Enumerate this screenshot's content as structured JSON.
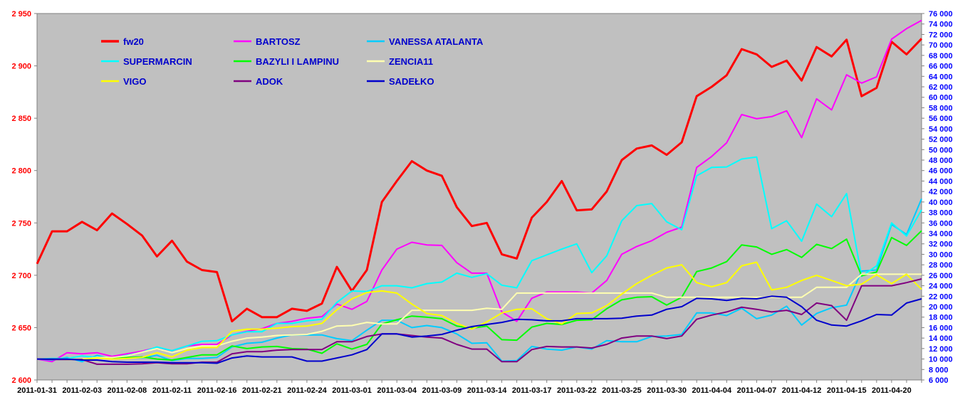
{
  "chart_data": {
    "type": "line",
    "title": "",
    "xlabel": "",
    "ylabel": "",
    "plot_background": "#c0c0c0",
    "grid": false,
    "legend_position": "top-left inside plot",
    "left_axis": {
      "ylim": [
        2600,
        2950
      ],
      "ticks": [
        2600,
        2650,
        2700,
        2750,
        2800,
        2850,
        2900,
        2950
      ],
      "tick_labels": [
        "2 600",
        "2 650",
        "2 700",
        "2 750",
        "2 800",
        "2 850",
        "2 900",
        "2 950"
      ],
      "color": "#ff0000"
    },
    "right_axis": {
      "ylim": [
        6000,
        76000
      ],
      "ticks": [
        6000,
        8000,
        10000,
        12000,
        14000,
        16000,
        18000,
        20000,
        22000,
        24000,
        26000,
        28000,
        30000,
        32000,
        34000,
        36000,
        38000,
        40000,
        42000,
        44000,
        46000,
        48000,
        50000,
        52000,
        54000,
        56000,
        58000,
        60000,
        62000,
        64000,
        66000,
        68000,
        70000,
        72000,
        74000,
        76000
      ],
      "tick_labels": [
        "6 000",
        "8 000",
        "10 000",
        "12 000",
        "14 000",
        "16 000",
        "18 000",
        "20 000",
        "22 000",
        "24 000",
        "26 000",
        "28 000",
        "30 000",
        "32 000",
        "34 000",
        "36 000",
        "38 000",
        "40 000",
        "42 000",
        "44 000",
        "46 000",
        "48 000",
        "50 000",
        "52 000",
        "54 000",
        "56 000",
        "58 000",
        "60 000",
        "62 000",
        "64 000",
        "66 000",
        "68 000",
        "70 000",
        "72 000",
        "74 000",
        "76 000"
      ],
      "color": "#0000ff"
    },
    "x_count": 60,
    "x_tick_labels": [
      {
        "index": 0,
        "label": "2011-01-31"
      },
      {
        "index": 3,
        "label": "2011-02-03"
      },
      {
        "index": 6,
        "label": "2011-02-08"
      },
      {
        "index": 9,
        "label": "2011-02-11"
      },
      {
        "index": 12,
        "label": "2011-02-16"
      },
      {
        "index": 15,
        "label": "2011-02-21"
      },
      {
        "index": 18,
        "label": "2011-02-24"
      },
      {
        "index": 21,
        "label": "2011-03-01"
      },
      {
        "index": 24,
        "label": "2011-03-04"
      },
      {
        "index": 27,
        "label": "2011-03-09"
      },
      {
        "index": 30,
        "label": "2011-03-14"
      },
      {
        "index": 33,
        "label": "2011-03-17"
      },
      {
        "index": 36,
        "label": "2011-03-22"
      },
      {
        "index": 39,
        "label": "2011-03-25"
      },
      {
        "index": 42,
        "label": "2011-03-30"
      },
      {
        "index": 45,
        "label": "2011-04-04"
      },
      {
        "index": 48,
        "label": "2011-04-07"
      },
      {
        "index": 51,
        "label": "2011-04-12"
      },
      {
        "index": 54,
        "label": "2011-04-15"
      },
      {
        "index": 57,
        "label": "2011-04-20"
      }
    ],
    "series": [
      {
        "name": "fw20",
        "axis": "left",
        "color": "#ff0000",
        "width": 3,
        "values": [
          2711,
          2742,
          2742,
          2751,
          2743,
          2759,
          2749,
          2738,
          2718,
          2733,
          2713,
          2705,
          2703,
          2656,
          2668,
          2660,
          2660,
          2668,
          2666,
          2673,
          2708,
          2685,
          2705,
          2770,
          2790,
          2809,
          2800,
          2795,
          2765,
          2747,
          2750,
          2720,
          2716,
          2755,
          2770,
          2790,
          2762,
          2763,
          2780,
          2810,
          2821,
          2824,
          2815,
          2827,
          2871,
          2880,
          2891,
          2916,
          2911,
          2899,
          2905,
          2886,
          2918,
          2909,
          2925,
          2871,
          2879,
          2923,
          2911,
          2926
        ]
      },
      {
        "name": "BARTOSZ",
        "axis": "right",
        "color": "#ff00ff",
        "width": 2,
        "values": [
          10000,
          9500,
          11200,
          11000,
          11200,
          10500,
          11000,
          11500,
          12200,
          11600,
          12500,
          12800,
          12800,
          14600,
          15300,
          15800,
          16800,
          17200,
          17800,
          18100,
          20500,
          19500,
          21000,
          27000,
          31000,
          32300,
          31800,
          31700,
          28400,
          26400,
          26400,
          19000,
          17200,
          21600,
          22800,
          22800,
          22800,
          22600,
          25000,
          30000,
          31500,
          32600,
          34200,
          35200,
          46600,
          48700,
          51300,
          56700,
          55900,
          56300,
          57400,
          52300,
          59700,
          57600,
          64300,
          62700,
          63900,
          71100,
          73100,
          74700
        ]
      },
      {
        "name": "VANESSA ATALANTA",
        "axis": "right",
        "color": "#00ccff",
        "width": 2,
        "values": [
          10000,
          9800,
          10300,
          9500,
          10700,
          10000,
          10200,
          10200,
          10700,
          9700,
          10100,
          10100,
          10300,
          12300,
          13000,
          13200,
          14000,
          14600,
          14600,
          14600,
          13900,
          13500,
          15500,
          17400,
          17400,
          16000,
          16400,
          16000,
          14800,
          13000,
          13100,
          9600,
          9700,
          12400,
          11900,
          11700,
          12300,
          11900,
          13500,
          13300,
          13300,
          14300,
          14400,
          14700,
          18800,
          18800,
          18300,
          19700,
          17700,
          18400,
          20100,
          16500,
          18700,
          19800,
          20300,
          26800,
          27000,
          35700,
          33800,
          40600
        ]
      },
      {
        "name": "SUPERMARCIN",
        "axis": "right",
        "color": "#00ffff",
        "width": 2,
        "values": [
          10000,
          10100,
          10100,
          10600,
          10300,
          10200,
          10700,
          11300,
          12300,
          11600,
          12500,
          13400,
          13500,
          14600,
          15200,
          15200,
          16800,
          16800,
          17300,
          17600,
          20800,
          23000,
          22900,
          24000,
          24000,
          23600,
          24400,
          24700,
          26400,
          25600,
          26300,
          24100,
          23600,
          28800,
          29900,
          31000,
          32000,
          26500,
          29700,
          36400,
          39300,
          39700,
          36200,
          34700,
          45000,
          46600,
          46700,
          48200,
          48600,
          34900,
          36400,
          32500,
          39600,
          37200,
          41600,
          25800,
          27800,
          36000,
          33500,
          38500
        ]
      },
      {
        "name": "BAZYLI I LAMPINU",
        "axis": "right",
        "color": "#00ff00",
        "width": 2,
        "values": [
          10000,
          10000,
          10000,
          10000,
          10300,
          10300,
          10300,
          10400,
          10000,
          9800,
          10300,
          10800,
          10800,
          12500,
          12000,
          12300,
          12400,
          12000,
          11900,
          11100,
          12900,
          11900,
          12800,
          16700,
          17500,
          18200,
          18000,
          17700,
          16300,
          15900,
          16300,
          13700,
          13600,
          16100,
          16800,
          16600,
          17400,
          17500,
          19600,
          21300,
          21800,
          21900,
          20300,
          21800,
          26700,
          27400,
          28600,
          31800,
          31400,
          30000,
          30900,
          29400,
          31900,
          31100,
          32900,
          25900,
          26600,
          33200,
          31700,
          34500
        ]
      },
      {
        "name": "ZENCIA11",
        "axis": "right",
        "color": "#ffffb0",
        "width": 2,
        "values": [
          10000,
          10000,
          10000,
          10000,
          10300,
          10300,
          10600,
          11300,
          12000,
          11200,
          12000,
          12500,
          12500,
          13400,
          14000,
          14200,
          14500,
          14600,
          14700,
          15300,
          16300,
          16400,
          17000,
          16700,
          16700,
          19300,
          19300,
          19300,
          19300,
          19300,
          19700,
          19500,
          22600,
          22600,
          22600,
          22600,
          22600,
          22600,
          22600,
          22600,
          22600,
          22600,
          21800,
          21800,
          21800,
          21800,
          21800,
          21800,
          21800,
          21800,
          21800,
          21800,
          23700,
          23700,
          23700,
          26200,
          26200,
          26200,
          26200,
          26200
        ]
      },
      {
        "name": "VIGO",
        "axis": "right",
        "color": "#ffff00",
        "width": 2,
        "values": [
          10000,
          10000,
          9900,
          9900,
          10200,
          10000,
          10100,
          10300,
          11200,
          10400,
          11700,
          12200,
          12200,
          15300,
          15700,
          15700,
          15900,
          16200,
          16300,
          16800,
          19400,
          21500,
          22700,
          23000,
          22600,
          20500,
          18700,
          18300,
          16800,
          15700,
          17100,
          18800,
          19500,
          19600,
          17700,
          16700,
          18700,
          18800,
          20200,
          22400,
          24400,
          26000,
          27400,
          28000,
          24600,
          23800,
          24600,
          27800,
          28500,
          23200,
          23700,
          25000,
          26000,
          25000,
          24000,
          24300,
          26100,
          24400,
          26200,
          23300
        ]
      },
      {
        "name": "ADOK",
        "axis": "right",
        "color": "#800080",
        "width": 2,
        "values": [
          10000,
          9900,
          9900,
          9900,
          9000,
          9000,
          9000,
          9100,
          9300,
          9100,
          9100,
          9400,
          9400,
          11000,
          11400,
          11400,
          11700,
          11800,
          11800,
          11800,
          13300,
          13300,
          14300,
          14800,
          14800,
          14500,
          14200,
          14000,
          12800,
          11900,
          11900,
          9500,
          9500,
          11800,
          12400,
          12300,
          12300,
          12100,
          12800,
          14000,
          14400,
          14400,
          13900,
          14400,
          17600,
          18400,
          19000,
          19900,
          19500,
          19000,
          19300,
          18500,
          20700,
          20200,
          17400,
          24000,
          24000,
          24000,
          24600,
          25300
        ]
      },
      {
        "name": "SADEŁKO",
        "axis": "right",
        "color": "#0000cc",
        "width": 2,
        "values": [
          10000,
          10000,
          10000,
          9800,
          9800,
          9500,
          9400,
          9400,
          9400,
          9300,
          9300,
          9300,
          9200,
          10200,
          10600,
          10400,
          10400,
          10400,
          9600,
          9600,
          10200,
          10800,
          11800,
          14800,
          14800,
          14200,
          14400,
          14700,
          15500,
          16200,
          16600,
          17000,
          17600,
          17500,
          17300,
          17300,
          17700,
          17700,
          17700,
          17800,
          18200,
          18400,
          19500,
          20000,
          21600,
          21500,
          21200,
          21600,
          21500,
          22000,
          21800,
          20000,
          17400,
          16500,
          16300,
          17300,
          18500,
          18400,
          20700,
          21500
        ]
      }
    ]
  }
}
